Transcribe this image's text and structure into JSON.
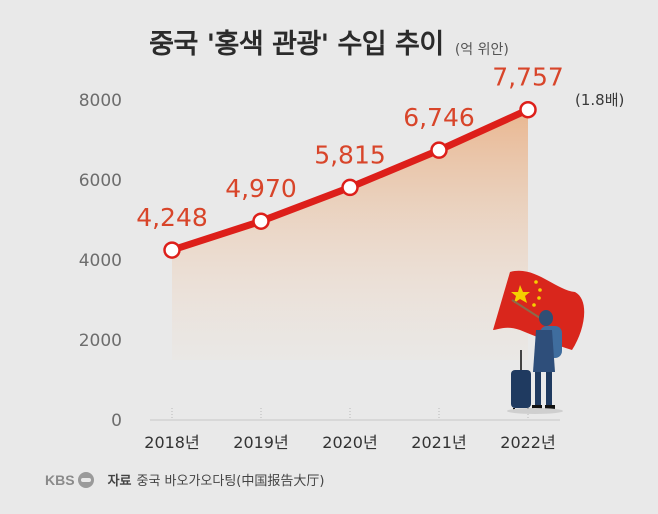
{
  "title": "중국 '홍색 관광' 수입 추이",
  "unit_label": "(억 위안)",
  "multiplier_note": "(1.8배)",
  "source": {
    "logo_text": "KBS",
    "label": "자료",
    "text": "중국 바오가오다팅(中国报告大厅)"
  },
  "colors": {
    "line": "#dd1f1a",
    "value_text": "#d8452a",
    "area_top": "#e9b48c",
    "area_bottom": "#efe2d6",
    "axis_text": "#6d6d6d",
    "grid": "#c8c8c8"
  },
  "chart_data": {
    "type": "line",
    "categories": [
      "2018년",
      "2019년",
      "2020년",
      "2021년",
      "2022년"
    ],
    "values": [
      4248,
      4970,
      5815,
      6746,
      7757
    ],
    "value_labels": [
      "4,248",
      "4,970",
      "5,815",
      "6,746",
      "7,757"
    ],
    "yticks": [
      "0",
      "2000",
      "4000",
      "6000",
      "8000"
    ],
    "ylim": [
      0,
      8000
    ],
    "grid": true,
    "area_fill": true
  }
}
